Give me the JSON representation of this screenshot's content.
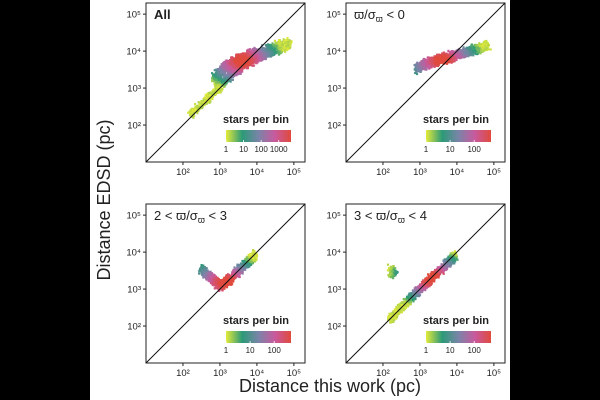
{
  "chart_data": {
    "type": "heatmap",
    "xlabel": "Distance this work (pc)",
    "ylabel": "Distance EDSD (pc)",
    "x_scale": "log",
    "y_scale": "log",
    "xlim_pc": [
      10,
      200000
    ],
    "ylim_pc": [
      10,
      200000
    ],
    "x_ticks": [
      "10²",
      "10³",
      "10⁴",
      "10⁵"
    ],
    "y_ticks": [
      "10²",
      "10³",
      "10⁴",
      "10⁵"
    ],
    "identity_line": true,
    "colorbar_title": "stars per bin",
    "colorbar_colors": [
      "#e3ea3a",
      "#2b9a78",
      "#7a84a8",
      "#c85a9e",
      "#e04a3c"
    ],
    "panels": [
      {
        "id": "all",
        "label_parts": [
          "All"
        ],
        "colorbar_ticks": [
          "1",
          "10",
          "100",
          "1000"
        ],
        "colorbar_max": 5000,
        "density": {
          "main_band": [
            [
              160,
              190
            ],
            [
              800,
              900
            ],
            [
              2000,
              2300
            ],
            [
              4000,
              4200
            ],
            [
              12000,
              7000
            ],
            [
              60000,
              14000
            ]
          ],
          "upper_band": [
            [
              700,
              1800
            ],
            [
              1500,
              4000
            ],
            [
              4000,
              6500
            ],
            [
              15000,
              10000
            ],
            [
              80000,
              16000
            ]
          ],
          "peak": [
            4000,
            5500
          ]
        }
      },
      {
        "id": "neg",
        "label_parts": [
          "ϖ/σ",
          "ϖ",
          " < 0"
        ],
        "colorbar_ticks": [
          "1",
          "10",
          "100"
        ],
        "colorbar_max": 500,
        "density": {
          "band": [
            [
              800,
              3500
            ],
            [
              2000,
              5000
            ],
            [
              5000,
              6500
            ],
            [
              20000,
              10000
            ],
            [
              70000,
              14000
            ]
          ],
          "peak": [
            4000,
            5500
          ]
        }
      },
      {
        "id": "2to3",
        "label_parts": [
          "2 < ϖ/σ",
          "ϖ",
          " < 3"
        ],
        "colorbar_ticks": [
          "1",
          "10",
          "100"
        ],
        "colorbar_max": 500,
        "density": {
          "band": [
            [
              300,
              3500
            ],
            [
              600,
              2000
            ],
            [
              1000,
              1200
            ],
            [
              2000,
              2000
            ],
            [
              5000,
              5000
            ],
            [
              9000,
              8000
            ]
          ],
          "peak": [
            1500,
            1500
          ]
        }
      },
      {
        "id": "3to4",
        "label_parts": [
          "3 < ϖ/σ",
          "ϖ",
          " < 4"
        ],
        "colorbar_ticks": [
          "1",
          "10",
          "100"
        ],
        "colorbar_max": 500,
        "density": {
          "band": [
            [
              150,
              160
            ],
            [
              500,
              520
            ],
            [
              1500,
              1500
            ],
            [
              5000,
              4600
            ],
            [
              9000,
              8000
            ]
          ],
          "cluster": [
            180,
            3000
          ],
          "peak": [
            2000,
            2000
          ]
        }
      }
    ]
  }
}
